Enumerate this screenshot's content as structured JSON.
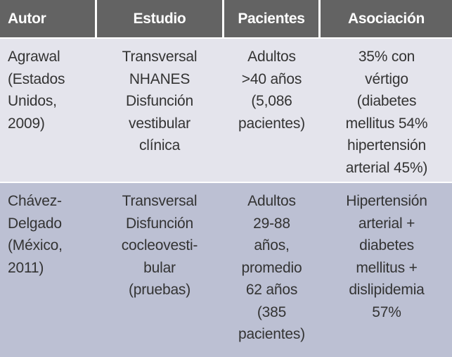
{
  "headers": [
    "Autor",
    "Estudio",
    "Pacientes",
    "Asociación"
  ],
  "rows": [
    [
      "Agrawal\n(Estados\nUnidos,\n2009)",
      "Transversal\nNHANES\nDisfunción\nvestibular\nclínica",
      "Adultos\n>40 años\n(5,086\npacientes)",
      "35% con\nvértigo\n(diabetes\nmellitus 54%\nhipertensión\narterial 45%)"
    ],
    [
      "Chávez-\nDelgado\n(México,\n2011)",
      "Transversal\nDisfunción\ncocleovesti-\nbular\n(pruebas)",
      "Adultos\n29-88\naños,\npromedio\n62 años\n(385\npacientes)",
      "Hipertensión\narterial +\ndiabetes\nmellitus +\ndislipidemia\n57%"
    ]
  ],
  "colors": {
    "header_bg": "#636363",
    "row1_bg": "#e4e4ec",
    "row2_bg": "#bcc0d3"
  }
}
